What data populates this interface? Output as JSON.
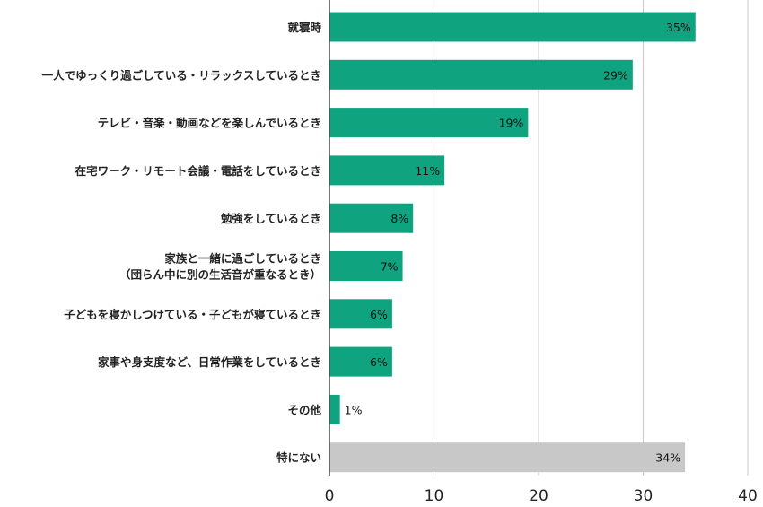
{
  "chart_data": {
    "type": "bar",
    "orientation": "horizontal",
    "title": "",
    "xlabel": "",
    "ylabel": "",
    "xlim": [
      0,
      40
    ],
    "ticks": [
      "0",
      "10",
      "20",
      "30",
      "40"
    ],
    "grid": true,
    "legend": "none",
    "categories": [
      [
        "就寝時"
      ],
      [
        "一人でゆっくり過ごしている・リラックスしているとき"
      ],
      [
        "テレビ・音楽・動画などを楽しんでいるとき"
      ],
      [
        "在宅ワーク・リモート会議・電話をしているとき"
      ],
      [
        "勉強をしているとき"
      ],
      [
        "家族と一緒に過ごしているとき",
        "（団らん中に別の生活音が重なるとき）"
      ],
      [
        "子どもを寝かしつけている・子どもが寝ているとき"
      ],
      [
        "家事や身支度など、日常作業をしているとき"
      ],
      [
        "その他"
      ],
      [
        "特にない"
      ]
    ],
    "values": [
      35,
      29,
      19,
      11,
      8,
      7,
      6,
      6,
      1,
      34
    ],
    "value_labels": [
      "35%",
      "29%",
      "19%",
      "11%",
      "8%",
      "7%",
      "6%",
      "6%",
      "1%",
      "34%"
    ],
    "bar_colors": [
      "#10a37f",
      "#10a37f",
      "#10a37f",
      "#10a37f",
      "#10a37f",
      "#10a37f",
      "#10a37f",
      "#10a37f",
      "#10a37f",
      "#c8c8c8"
    ]
  }
}
